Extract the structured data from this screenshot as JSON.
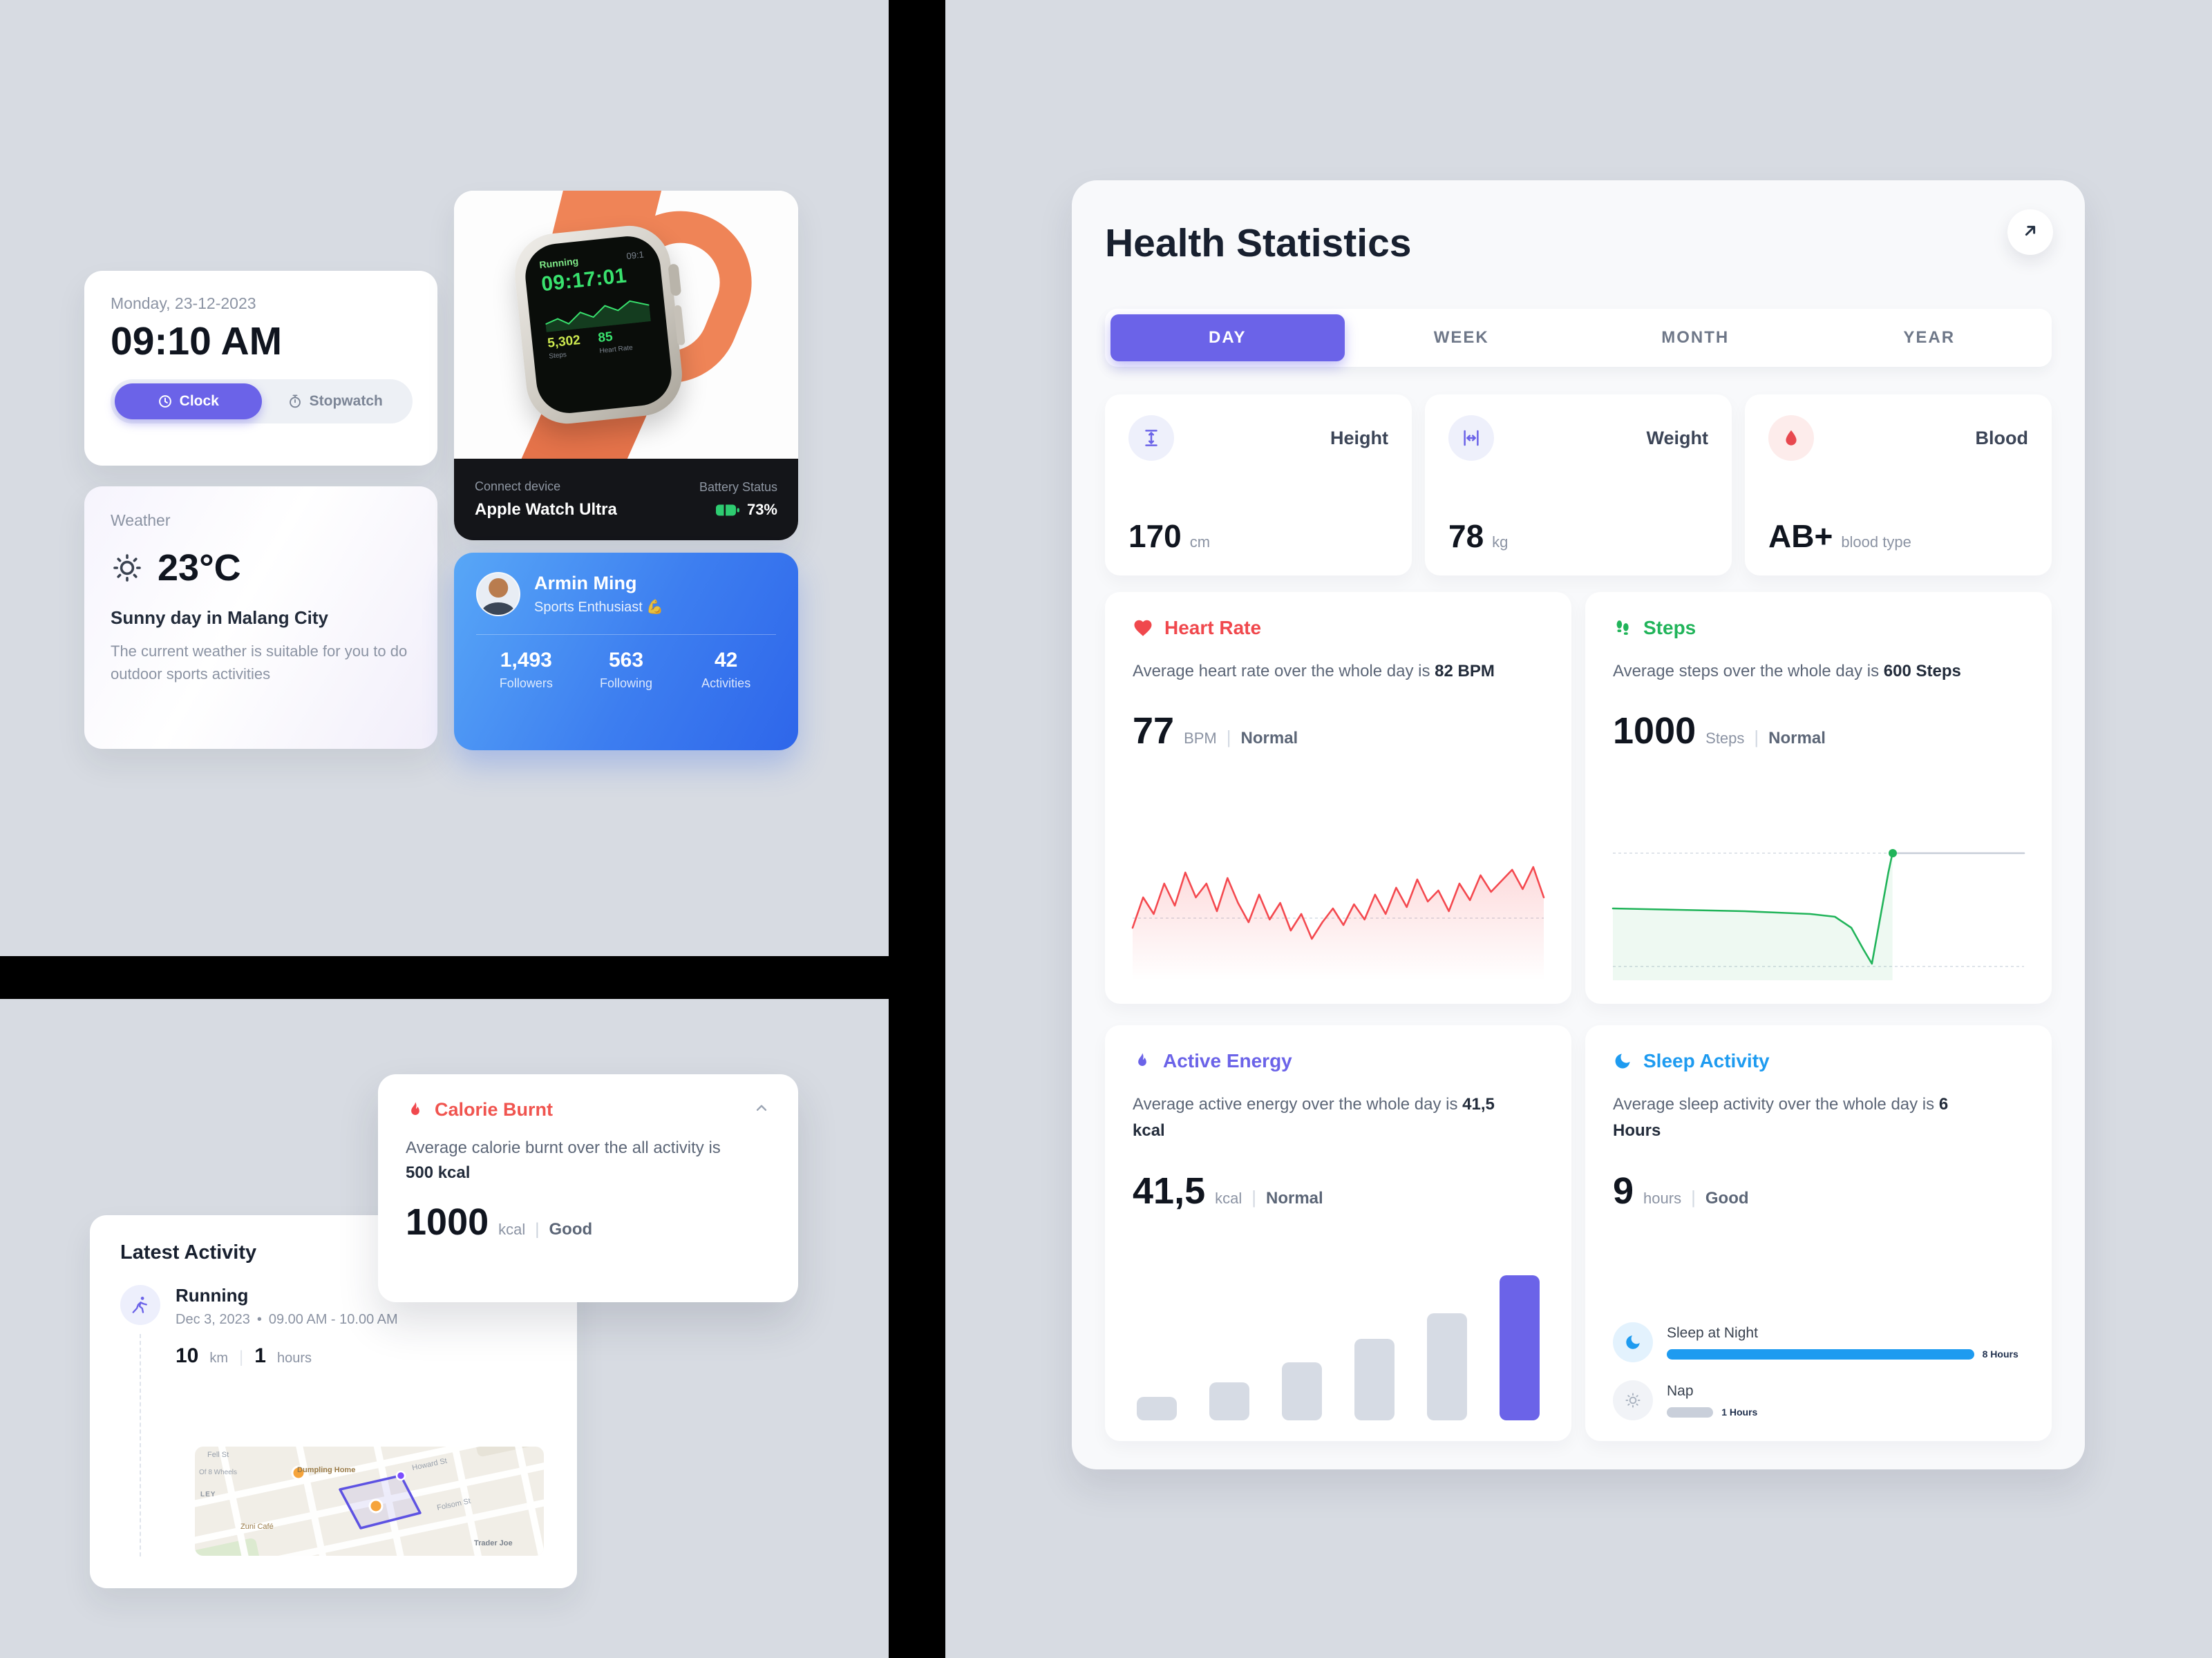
{
  "colors": {
    "accent_indigo": "#6b63e8",
    "red": "#f0484d",
    "green": "#21b45a",
    "blue": "#1e9bf0",
    "page_bg": "#d7dbe2",
    "battery_green": "#2ecc71",
    "band_orange": "#ef8457",
    "profile_gradient_start": "#58a7f7",
    "profile_gradient_end": "#2e66ea"
  },
  "clock_card": {
    "date": "Monday,  23-12-2023",
    "time": "09:10 AM",
    "tabs": {
      "clock": "Clock",
      "stopwatch": "Stopwatch"
    }
  },
  "weather_card": {
    "label": "Weather",
    "temperature": "23°C",
    "headline": "Sunny day in Malang City",
    "description": "The current weather is suitable for you to do outdoor sports activities"
  },
  "watch_card": {
    "connect_label": "Connect device",
    "device_name": "Apple Watch Ultra",
    "battery_label": "Battery Status",
    "battery_value": "73%",
    "screen": {
      "app": "Running",
      "corner_time": "09:1",
      "time": "09:17:01",
      "steps_value": "5,302",
      "steps_label": "Steps",
      "hr_value": "85",
      "hr_label": "Heart Rate"
    }
  },
  "profile_card": {
    "name": "Armin Ming",
    "role": "Sports Enthusiast 💪",
    "stats": [
      {
        "value": "1,493",
        "label": "Followers"
      },
      {
        "value": "563",
        "label": "Following"
      },
      {
        "value": "42",
        "label": "Activities"
      }
    ]
  },
  "calorie_card": {
    "title": "Calorie Burnt",
    "desc_prefix": "Average calorie burnt over the all activity is ",
    "desc_bold": "500 kcal",
    "value": "1000",
    "unit": "kcal",
    "divider": "|",
    "status": "Good"
  },
  "activity_card": {
    "title": "Latest Activity",
    "name": "Running",
    "date": "Dec 3, 2023",
    "separator": "•",
    "time_range": "09.00 AM - 10.00 AM",
    "distance_value": "10",
    "distance_unit": "km",
    "divider": "|",
    "duration_value": "1",
    "duration_unit": "hours",
    "map_labels": [
      "Fell St",
      "Of 8 Wheels",
      "LEY",
      "Dumpling Home",
      "Zuni Café",
      "Howard St",
      "Folsom St",
      "Trader Joe"
    ]
  },
  "right": {
    "title": "Health Statistics",
    "tabs": [
      {
        "label": "DAY",
        "active": true
      },
      {
        "label": "WEEK",
        "active": false
      },
      {
        "label": "MONTH",
        "active": false
      },
      {
        "label": "YEAR",
        "active": false
      }
    ],
    "stat_cards": [
      {
        "label": "Height",
        "value": "170",
        "unit": "cm"
      },
      {
        "label": "Weight",
        "value": "78",
        "unit": "kg"
      },
      {
        "label": "Blood",
        "value": "AB+",
        "unit": "blood type"
      }
    ],
    "heart_rate": {
      "title": "Heart Rate",
      "desc_prefix": "Average heart rate over the whole day is ",
      "desc_bold": "82 BPM",
      "value": "77",
      "unit": "BPM",
      "divider": "|",
      "status": "Normal"
    },
    "steps": {
      "title": "Steps",
      "desc_prefix": "Average steps over the whole day is ",
      "desc_bold": "600 Steps",
      "value": "1000",
      "unit": "Steps",
      "divider": "|",
      "status": "Normal"
    },
    "active_energy": {
      "title": "Active Energy",
      "desc_prefix": "Average active energy over the whole day is ",
      "desc_bold": "41,5 kcal",
      "value": "41,5",
      "unit": "kcal",
      "divider": "|",
      "status": "Normal"
    },
    "sleep": {
      "title": "Sleep Activity",
      "desc_prefix": "Average sleep activity over the whole day is ",
      "desc_bold": "6 Hours",
      "value": "9",
      "unit": "hours",
      "divider": "|",
      "status": "Good",
      "rows": [
        {
          "label": "Sleep at Night",
          "value_label": "8 Hours",
          "pct": 86,
          "color": "#1e9bf0"
        },
        {
          "label": "Nap",
          "value_label": "1 Hours",
          "pct": 13,
          "color": "#c9cfda"
        }
      ]
    }
  },
  "chart_data": [
    {
      "id": "heart-rate",
      "type": "line",
      "title": "Heart rate over the day",
      "color": "#f4494f",
      "fill_from": "rgba(244,73,79,0.20)",
      "fill_to": "rgba(244,73,79,0)",
      "dash_lines": [
        55
      ],
      "points_y": [
        62,
        40,
        52,
        30,
        46,
        22,
        40,
        30,
        50,
        26,
        44,
        58,
        38,
        56,
        44,
        64,
        52,
        70,
        58,
        48,
        60,
        45,
        56,
        38,
        52,
        33,
        47,
        27,
        43,
        35,
        50,
        30,
        42,
        24,
        36,
        28,
        20,
        34,
        18,
        40
      ],
      "note": "normalized 0-100 canvas, lower = higher BPM, avg 82 BPM, current 77 BPM"
    },
    {
      "id": "steps",
      "type": "segments",
      "title": "Steps over the day",
      "dash_lines": [
        8,
        90
      ],
      "series": [
        {
          "color": "#21b45a",
          "width": 2.6,
          "fill": "rgba(33,180,90,0.08)",
          "points": [
            [
              0,
              48
            ],
            [
              8,
              48.5
            ],
            [
              16,
              49
            ],
            [
              24,
              49.5
            ],
            [
              32,
              50
            ],
            [
              40,
              51
            ],
            [
              48,
              52
            ],
            [
              54,
              54
            ],
            [
              58,
              62
            ],
            [
              61,
              78
            ],
            [
              63,
              88
            ],
            [
              65,
              55
            ],
            [
              67,
              22
            ],
            [
              68,
              8
            ]
          ]
        },
        {
          "color": "#c7cdd8",
          "width": 2.6,
          "points": [
            [
              68,
              8
            ],
            [
              100,
              8
            ]
          ]
        }
      ],
      "dot": {
        "x": 68,
        "y": 8,
        "color": "#21b45a"
      },
      "note": "avg 600 steps, current 1000 steps"
    },
    {
      "id": "active-energy",
      "type": "bar",
      "title": "Active energy bars",
      "values": [
        16,
        26,
        40,
        56,
        74,
        100
      ],
      "colors": [
        "#d6dbe4",
        "#d6dbe4",
        "#d6dbe4",
        "#d6dbe4",
        "#d6dbe4",
        "#6b63e8"
      ],
      "note": "avg 41,5 kcal, rising through the day"
    }
  ]
}
